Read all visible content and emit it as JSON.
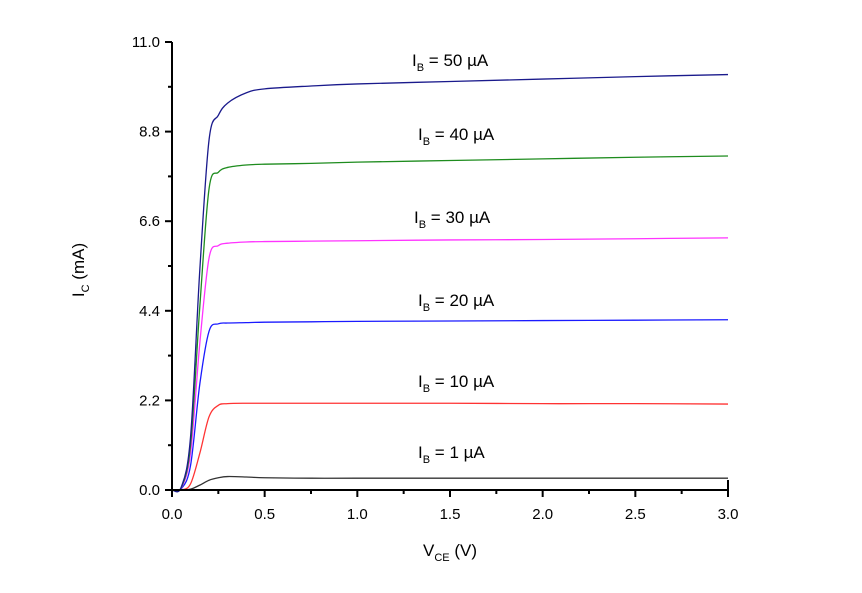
{
  "chart_data": {
    "type": "line",
    "title": "",
    "xlabel": "V_CE (V)",
    "xlabel_main": "V",
    "xlabel_sub": "CE",
    "xlabel_unit": " (V)",
    "ylabel": "I_C (mA)",
    "ylabel_main": "I",
    "ylabel_sub": "C",
    "ylabel_unit": " (mA)",
    "xlim": [
      0.0,
      3.0
    ],
    "ylim": [
      0.0,
      11.0
    ],
    "xticks": [
      "0.0",
      "0.5",
      "1.0",
      "1.5",
      "2.0",
      "2.5",
      "3.0"
    ],
    "yticks": [
      "0.0",
      "2.2",
      "4.4",
      "6.6",
      "8.8",
      "11.0"
    ],
    "grid": false,
    "legend": "inline annotations above each curve",
    "x": [
      0.0,
      0.05,
      0.1,
      0.15,
      0.2,
      0.25,
      0.3,
      0.4,
      0.5,
      0.75,
      1.0,
      1.5,
      2.0,
      2.5,
      3.0
    ],
    "series": [
      {
        "name": "I_B = 1 µA",
        "label_main": "I",
        "label_sub": "B",
        "label_rest": " = 1 µA",
        "color": "#333333",
        "values": [
          0.0,
          0.0,
          0.02,
          0.12,
          0.24,
          0.3,
          0.33,
          0.32,
          0.3,
          0.29,
          0.29,
          0.29,
          0.29,
          0.29,
          0.29
        ]
      },
      {
        "name": "I_B = 10 µA",
        "label_main": "I",
        "label_sub": "B",
        "label_rest": " = 10 µA",
        "color": "#ff3333",
        "values": [
          0.0,
          0.0,
          0.15,
          0.9,
          1.8,
          2.08,
          2.12,
          2.13,
          2.13,
          2.13,
          2.13,
          2.13,
          2.12,
          2.12,
          2.11
        ]
      },
      {
        "name": "I_B = 20 µA",
        "label_main": "I",
        "label_sub": "B",
        "label_rest": " = 20 µA",
        "color": "#1a1aff",
        "values": [
          0.0,
          0.03,
          0.6,
          2.6,
          3.9,
          4.08,
          4.1,
          4.11,
          4.12,
          4.13,
          4.14,
          4.15,
          4.16,
          4.17,
          4.18
        ]
      },
      {
        "name": "I_B = 30 µA",
        "label_main": "I",
        "label_sub": "B",
        "label_rest": " = 30 µA",
        "color": "#ff33ff",
        "values": [
          0.0,
          0.05,
          0.9,
          3.6,
          5.7,
          6.0,
          6.06,
          6.09,
          6.1,
          6.11,
          6.12,
          6.14,
          6.15,
          6.17,
          6.19
        ]
      },
      {
        "name": "I_B = 40 µA",
        "label_main": "I",
        "label_sub": "B",
        "label_rest": " = 40 µA",
        "color": "#1e8c1e",
        "values": [
          0.0,
          0.06,
          1.1,
          4.5,
          7.4,
          7.8,
          7.92,
          7.98,
          8.0,
          8.02,
          8.05,
          8.09,
          8.13,
          8.17,
          8.2
        ]
      },
      {
        "name": "I_B = 50 µA",
        "label_main": "I",
        "label_sub": "B",
        "label_rest": " = 50 µA",
        "color": "#1a1a8c",
        "values": [
          0.0,
          0.07,
          1.3,
          5.4,
          8.6,
          9.2,
          9.5,
          9.75,
          9.85,
          9.92,
          9.97,
          10.03,
          10.09,
          10.15,
          10.2
        ]
      }
    ]
  }
}
